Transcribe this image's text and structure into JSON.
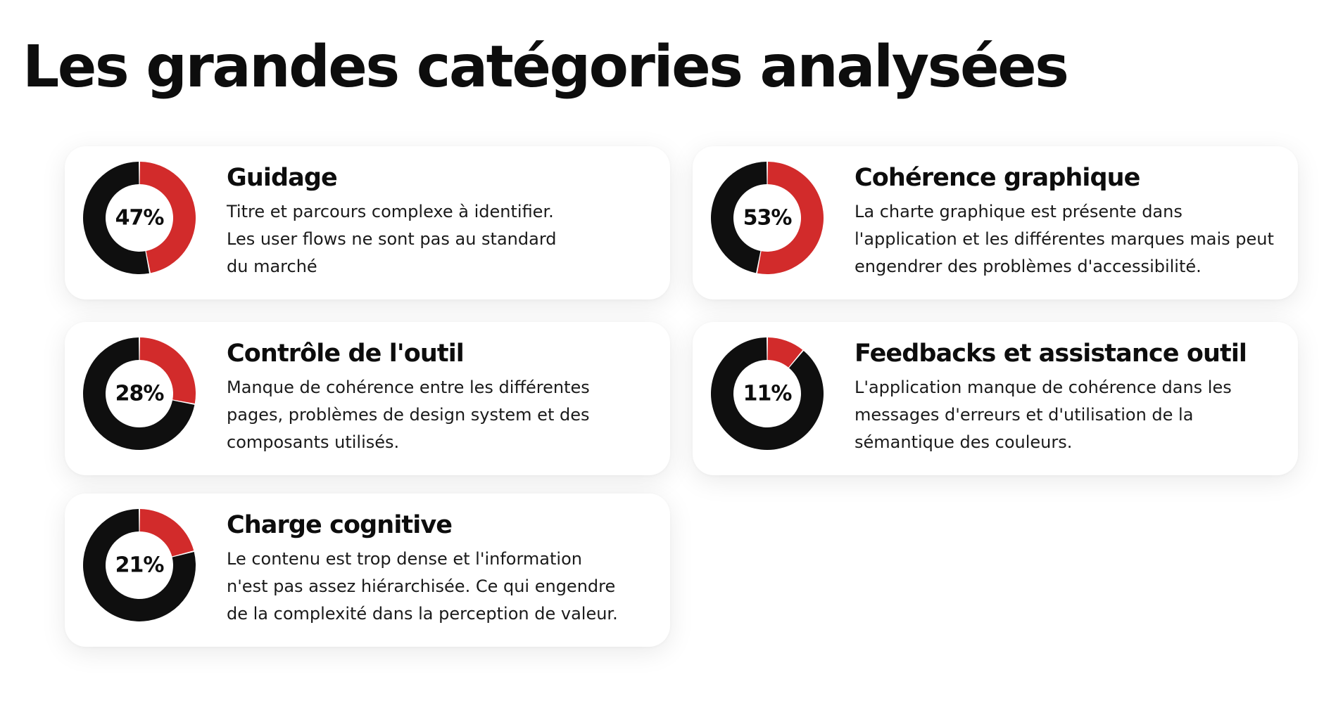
{
  "page": {
    "title": "Les grandes catégories analysées"
  },
  "colors": {
    "accent": "#d22b2b",
    "base": "#0f0f0f",
    "text": "#0d0d0d"
  },
  "chart_data": [
    {
      "type": "pie",
      "title": "Guidage",
      "label": "47%",
      "values": [
        47,
        53
      ],
      "description_lines": [
        "Titre et parcours complexe à identifier.",
        "Les user flows ne sont pas au standard",
        "du marché"
      ]
    },
    {
      "type": "pie",
      "title": "Cohérence graphique",
      "label": "53%",
      "values": [
        53,
        47
      ],
      "description_lines": [
        "La charte graphique est présente dans",
        "l'application et les différentes marques mais peut",
        "engendrer des problèmes d'accessibilité."
      ]
    },
    {
      "type": "pie",
      "title": "Contrôle de l'outil",
      "label": "28%",
      "values": [
        28,
        72
      ],
      "description_lines": [
        "Manque de cohérence entre les différentes",
        "pages, problèmes de design system et des",
        "composants utilisés."
      ]
    },
    {
      "type": "pie",
      "title": "Feedbacks et assistance outil",
      "label": "11%",
      "values": [
        11,
        89
      ],
      "description_lines": [
        "L'application manque de cohérence dans les",
        "messages d'erreurs et d'utilisation de la",
        "sémantique des couleurs."
      ]
    },
    {
      "type": "pie",
      "title": "Charge cognitive",
      "label": "21%",
      "values": [
        21,
        79
      ],
      "description_lines": [
        "Le contenu est trop dense et l'information",
        "n'est pas assez hiérarchisée. Ce qui engendre",
        "de la complexité dans la perception de valeur."
      ]
    }
  ]
}
